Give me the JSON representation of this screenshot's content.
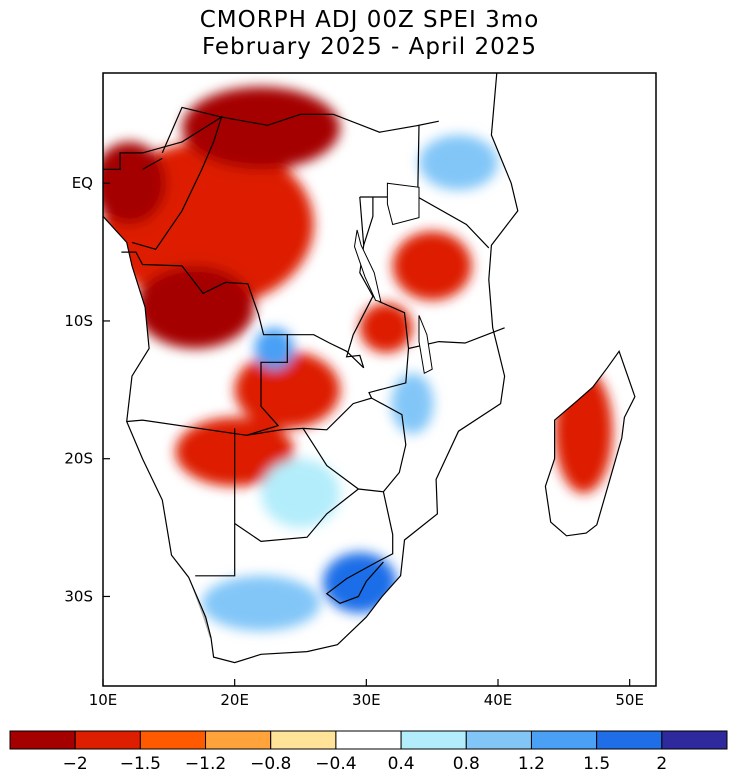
{
  "title": {
    "line1": "CMORPH ADJ 00Z SPEI 3mo",
    "line2": "February 2025 - April 2025"
  },
  "map": {
    "region": "southern-africa",
    "lon_range": [
      10,
      52
    ],
    "lat_range": [
      -36.5,
      8
    ],
    "land_fill": "#ffffff",
    "nodata_color": "#b4b4b4",
    "x_ticks": [
      {
        "value": 10,
        "label": "10E"
      },
      {
        "value": 20,
        "label": "20E"
      },
      {
        "value": 30,
        "label": "30E"
      },
      {
        "value": 40,
        "label": "40E"
      },
      {
        "value": 50,
        "label": "50E"
      }
    ],
    "y_ticks": [
      {
        "value": 0,
        "label": "EQ"
      },
      {
        "value": -10,
        "label": "10S"
      },
      {
        "value": -20,
        "label": "20S"
      },
      {
        "value": -30,
        "label": "30S"
      }
    ]
  },
  "colorbar": {
    "colors": [
      "#a50000",
      "#dd1f00",
      "#ff5a00",
      "#ffa33a",
      "#ffe399",
      "#ffffff",
      "#b3edfb",
      "#82c6f8",
      "#4aa0f5",
      "#1f6ee8",
      "#2e2a9e"
    ],
    "labels": [
      "-2",
      "-1.5",
      "-1.2",
      "-0.8",
      "-0.4",
      "0.4",
      "0.8",
      "1.2",
      "1.5",
      "2"
    ]
  },
  "anomaly_regions": [
    {
      "name": "congo-drought",
      "lon": 18,
      "lat": -3,
      "rx": 8,
      "ry": 6,
      "color": "#dd1f00"
    },
    {
      "name": "angola-drought",
      "lon": 17,
      "lat": -9,
      "rx": 4.5,
      "ry": 3,
      "color": "#a50000"
    },
    {
      "name": "gabon-drought",
      "lon": 12,
      "lat": 0,
      "rx": 2.8,
      "ry": 3,
      "color": "#a50000"
    },
    {
      "name": "drc-east-drought",
      "lon": 22,
      "lat": 4,
      "rx": 6,
      "ry": 3,
      "color": "#a50000"
    },
    {
      "name": "zambia-drought",
      "lon": 24,
      "lat": -15,
      "rx": 4,
      "ry": 2.8,
      "color": "#dd1f00"
    },
    {
      "name": "namibia-botswana-drought",
      "lon": 20,
      "lat": -19.5,
      "rx": 4.5,
      "ry": 2.5,
      "color": "#dd1f00"
    },
    {
      "name": "tanzania-drought",
      "lon": 35,
      "lat": -6,
      "rx": 3,
      "ry": 2.5,
      "color": "#dd1f00"
    },
    {
      "name": "lake-malawi-drought",
      "lon": 31.5,
      "lat": -10.5,
      "rx": 2,
      "ry": 1.8,
      "color": "#dd1f00"
    },
    {
      "name": "madagascar-drought",
      "lon": 46.5,
      "lat": -18,
      "rx": 2.2,
      "ry": 4.5,
      "color": "#dd1f00"
    },
    {
      "name": "east-africa-wet",
      "lon": 37,
      "lat": 1.5,
      "rx": 3,
      "ry": 2,
      "color": "#82c6f8"
    },
    {
      "name": "mozambique-wet",
      "lon": 33.5,
      "lat": -16,
      "rx": 1.6,
      "ry": 2.2,
      "color": "#82c6f8"
    },
    {
      "name": "south-africa-east-wet",
      "lon": 29.5,
      "lat": -29,
      "rx": 2.8,
      "ry": 2.2,
      "color": "#1f6ee8"
    },
    {
      "name": "south-africa-west-wet",
      "lon": 22,
      "lat": -30.5,
      "rx": 4.5,
      "ry": 2,
      "color": "#82c6f8"
    },
    {
      "name": "kalahari-wet",
      "lon": 25,
      "lat": -22.5,
      "rx": 3,
      "ry": 2.5,
      "color": "#b3edfb"
    },
    {
      "name": "zambia-west-wet",
      "lon": 23,
      "lat": -12,
      "rx": 1.5,
      "ry": 1.5,
      "color": "#4aa0f5"
    }
  ]
}
